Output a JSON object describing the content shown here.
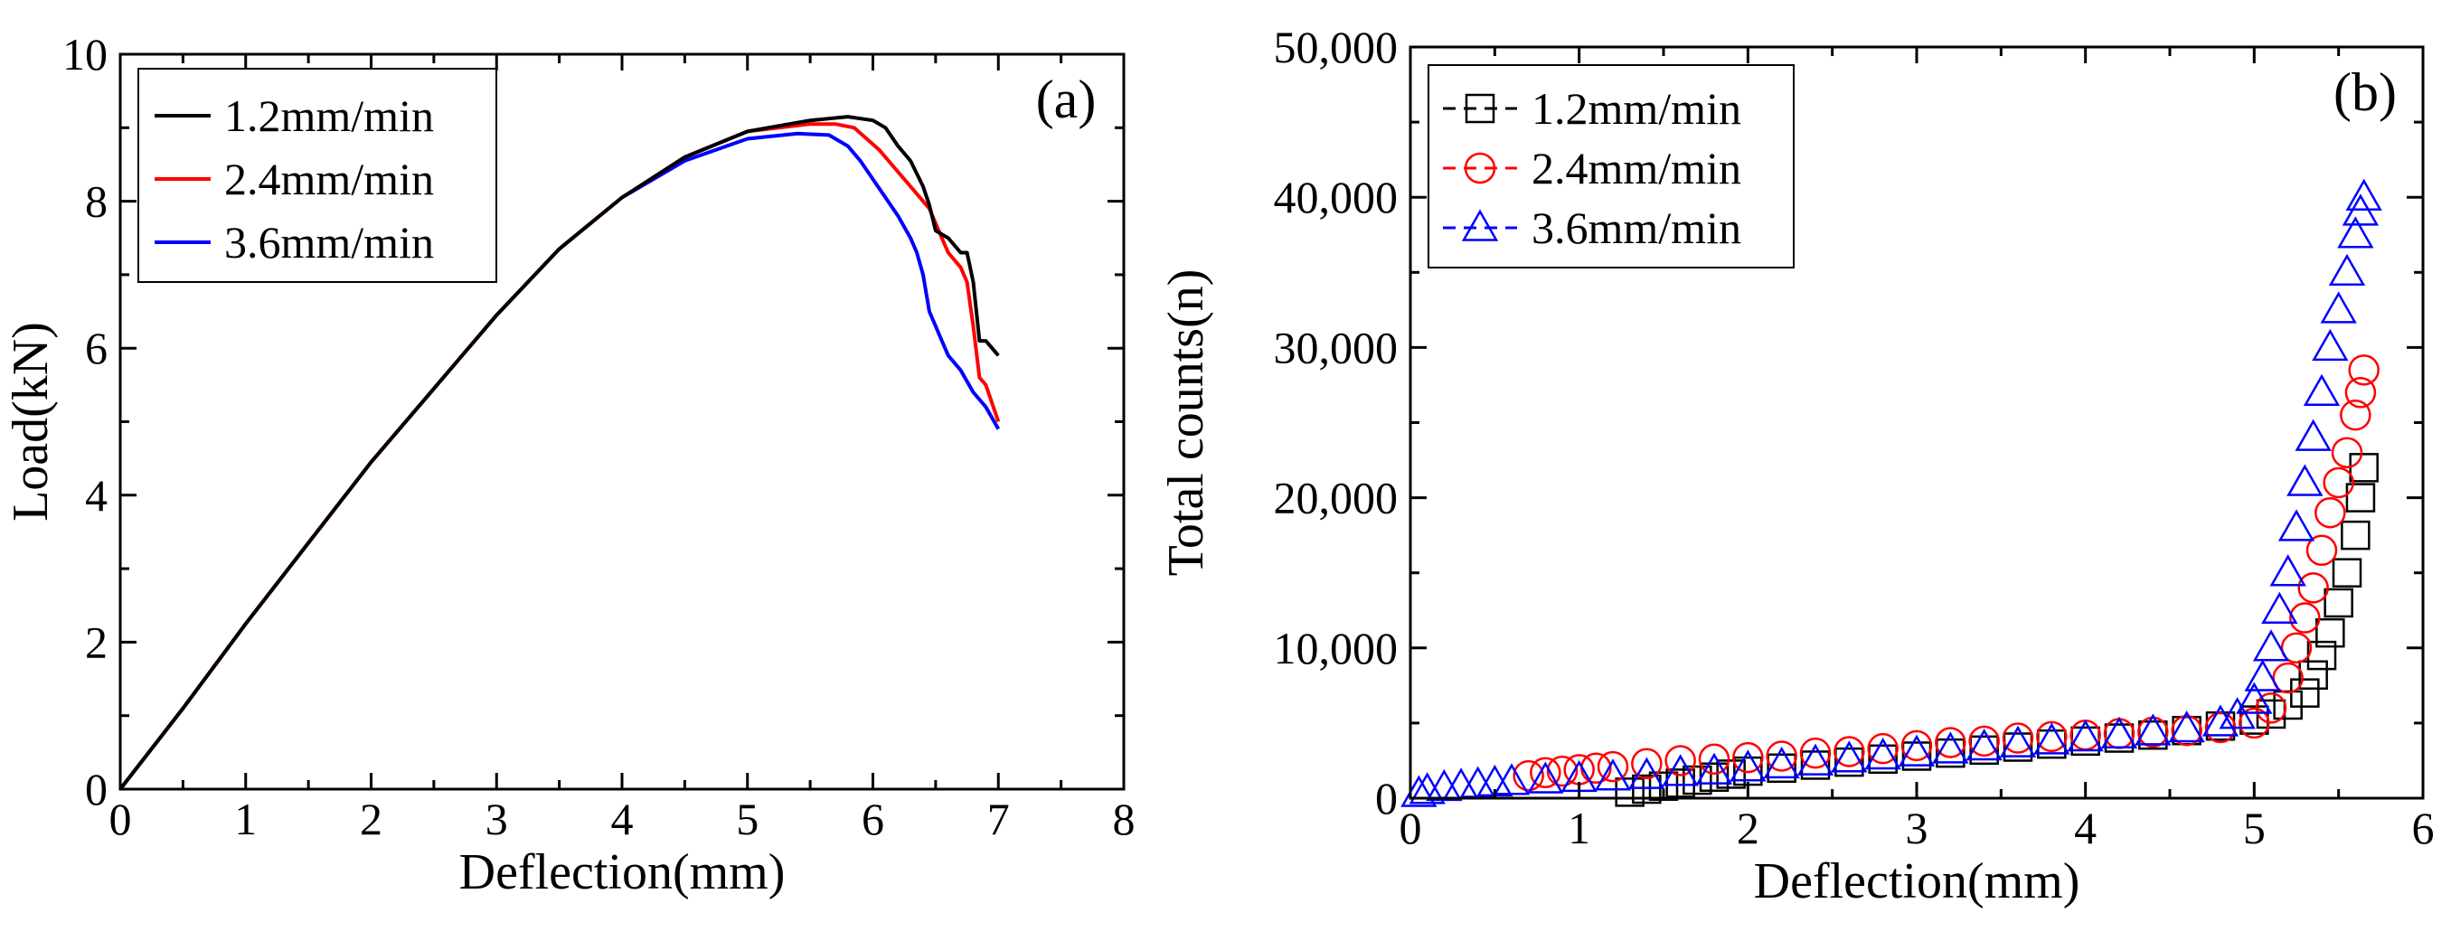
{
  "colors": {
    "series_1": "#000000",
    "series_2": "#ff0000",
    "series_3": "#0000ff",
    "axis": "#000000",
    "background": "#ffffff"
  },
  "chart_data": [
    {
      "type": "line",
      "panel_label": "(a)",
      "xlabel": "Deflection(mm)",
      "ylabel": "Load(kN)",
      "xlim": [
        0,
        8
      ],
      "ylim": [
        0,
        10
      ],
      "xticks": [
        "0",
        "1",
        "2",
        "3",
        "4",
        "5",
        "6",
        "7",
        "8"
      ],
      "yticks": [
        "0",
        "2",
        "4",
        "6",
        "8",
        "10"
      ],
      "grid": false,
      "legend_position": "top-left",
      "series": [
        {
          "name": "1.2mm/min",
          "color": "#000000",
          "x": [
            0,
            0.5,
            1,
            1.5,
            2,
            2.5,
            3,
            3.5,
            4,
            4.5,
            5,
            5.5,
            5.8,
            6.0,
            6.1,
            6.2,
            6.3,
            6.4,
            6.45,
            6.5,
            6.55,
            6.6,
            6.7,
            6.75,
            6.8,
            6.85,
            6.9,
            7.0
          ],
          "y": [
            0,
            1.1,
            2.25,
            3.35,
            4.45,
            5.45,
            6.45,
            7.35,
            8.05,
            8.6,
            8.95,
            9.1,
            9.15,
            9.1,
            9.0,
            8.75,
            8.55,
            8.2,
            7.95,
            7.6,
            7.55,
            7.5,
            7.3,
            7.3,
            6.9,
            6.1,
            6.1,
            5.9
          ]
        },
        {
          "name": "2.4mm/min",
          "color": "#ff0000",
          "x": [
            0,
            0.5,
            1,
            1.5,
            2,
            2.5,
            3,
            3.5,
            4,
            4.5,
            5,
            5.5,
            5.7,
            5.85,
            5.95,
            6.05,
            6.15,
            6.25,
            6.35,
            6.45,
            6.55,
            6.6,
            6.7,
            6.75,
            6.8,
            6.85,
            6.9,
            7.0
          ],
          "y": [
            0,
            1.1,
            2.25,
            3.35,
            4.45,
            5.45,
            6.45,
            7.35,
            8.05,
            8.6,
            8.95,
            9.05,
            9.05,
            9.0,
            8.85,
            8.7,
            8.5,
            8.3,
            8.1,
            7.9,
            7.5,
            7.3,
            7.1,
            6.9,
            6.3,
            5.6,
            5.5,
            5.0
          ]
        },
        {
          "name": "3.6mm/min",
          "color": "#0000ff",
          "x": [
            0,
            0.5,
            1,
            1.5,
            2,
            2.5,
            3,
            3.5,
            4,
            4.5,
            5,
            5.4,
            5.65,
            5.8,
            5.9,
            6.0,
            6.1,
            6.2,
            6.3,
            6.35,
            6.4,
            6.45,
            6.5,
            6.55,
            6.6,
            6.7,
            6.8,
            6.9,
            7.0
          ],
          "y": [
            0,
            1.1,
            2.25,
            3.35,
            4.45,
            5.45,
            6.45,
            7.35,
            8.05,
            8.55,
            8.85,
            8.92,
            8.9,
            8.75,
            8.55,
            8.3,
            8.05,
            7.8,
            7.5,
            7.3,
            7.0,
            6.5,
            6.3,
            6.1,
            5.9,
            5.7,
            5.4,
            5.2,
            4.9
          ]
        }
      ]
    },
    {
      "type": "scatter",
      "panel_label": "(b)",
      "xlabel": "Deflection(mm)",
      "ylabel": "Total counts(n)",
      "xlim": [
        0,
        6
      ],
      "ylim": [
        0,
        50000
      ],
      "xticks": [
        "0",
        "1",
        "2",
        "3",
        "4",
        "5",
        "6"
      ],
      "yticks": [
        "0",
        "10,000",
        "20,000",
        "30,000",
        "40,000",
        "50,000"
      ],
      "grid": false,
      "legend_position": "top-left",
      "series": [
        {
          "name": "1.2mm/min",
          "marker": "square",
          "color": "#000000",
          "x": [
            1.3,
            1.4,
            1.5,
            1.6,
            1.7,
            1.8,
            1.9,
            2.0,
            2.2,
            2.4,
            2.6,
            2.8,
            3.0,
            3.2,
            3.4,
            3.6,
            3.8,
            4.0,
            4.2,
            4.4,
            4.6,
            4.8,
            5.0,
            5.1,
            5.2,
            5.3,
            5.35,
            5.4,
            5.45,
            5.5,
            5.55,
            5.6,
            5.63,
            5.65
          ],
          "y": [
            400,
            600,
            800,
            1000,
            1200,
            1400,
            1600,
            1800,
            2000,
            2200,
            2400,
            2600,
            2800,
            3000,
            3200,
            3400,
            3600,
            3800,
            4000,
            4200,
            4500,
            4800,
            5200,
            5600,
            6200,
            7000,
            8200,
            9500,
            11000,
            13000,
            15000,
            17500,
            20000,
            22000
          ]
        },
        {
          "name": "2.4mm/min",
          "marker": "circle",
          "color": "#ff0000",
          "x": [
            0.7,
            0.8,
            0.9,
            1.0,
            1.1,
            1.2,
            1.4,
            1.6,
            1.8,
            2.0,
            2.2,
            2.4,
            2.6,
            2.8,
            3.0,
            3.2,
            3.4,
            3.6,
            3.8,
            4.0,
            4.2,
            4.4,
            4.6,
            4.8,
            5.0,
            5.1,
            5.2,
            5.25,
            5.3,
            5.35,
            5.4,
            5.45,
            5.5,
            5.55,
            5.6,
            5.63,
            5.65
          ],
          "y": [
            1500,
            1700,
            1800,
            1900,
            2000,
            2100,
            2300,
            2500,
            2600,
            2700,
            2800,
            3000,
            3100,
            3300,
            3500,
            3700,
            3800,
            4000,
            4100,
            4200,
            4300,
            4400,
            4500,
            4700,
            5000,
            6000,
            8000,
            10000,
            12000,
            14000,
            16500,
            19000,
            21000,
            23000,
            25500,
            27000,
            28500
          ]
        },
        {
          "name": "3.6mm/min",
          "marker": "triangle",
          "color": "#0000ff",
          "x": [
            0.05,
            0.1,
            0.2,
            0.3,
            0.4,
            0.5,
            0.6,
            0.8,
            1.0,
            1.2,
            1.4,
            1.6,
            1.8,
            2.0,
            2.2,
            2.4,
            2.6,
            2.8,
            3.0,
            3.2,
            3.4,
            3.6,
            3.8,
            4.0,
            4.2,
            4.4,
            4.6,
            4.8,
            4.9,
            5.0,
            5.05,
            5.1,
            5.15,
            5.2,
            5.25,
            5.3,
            5.35,
            5.4,
            5.45,
            5.5,
            5.55,
            5.6,
            5.63,
            5.65
          ],
          "y": [
            300,
            500,
            700,
            800,
            900,
            1000,
            1100,
            1200,
            1300,
            1400,
            1500,
            1700,
            1800,
            2000,
            2200,
            2400,
            2600,
            2800,
            3000,
            3200,
            3400,
            3600,
            3800,
            4000,
            4200,
            4400,
            4600,
            5000,
            5500,
            6500,
            8000,
            10000,
            12500,
            15000,
            18000,
            21000,
            24000,
            27000,
            30000,
            32500,
            35000,
            37500,
            39000,
            40000
          ]
        }
      ]
    }
  ]
}
